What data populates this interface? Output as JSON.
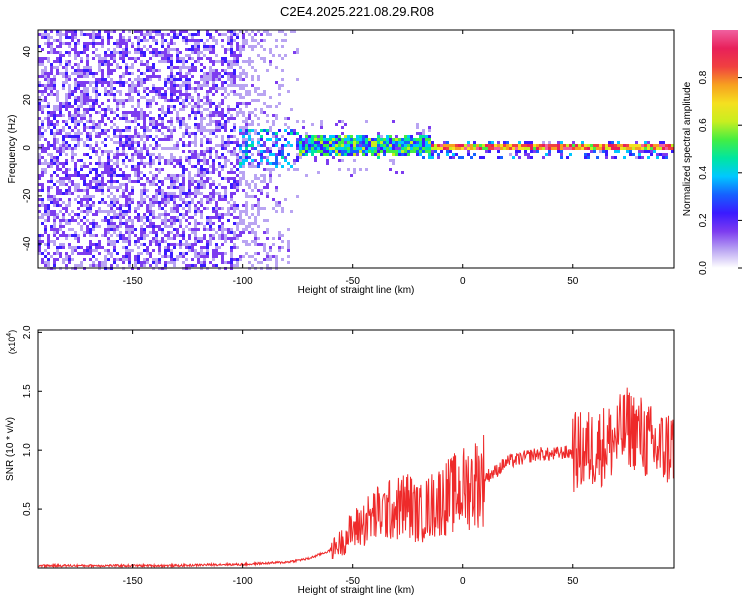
{
  "title": "C2E4.2025.221.08.29.R08",
  "colors": {
    "snr_line": "#ee2a2a",
    "axis": "#000000",
    "background": "#ffffff",
    "colormap": [
      "#ffffff",
      "#b9a4f2",
      "#7d3cf0",
      "#3a1aff",
      "#1660ff",
      "#00c8ff",
      "#00e6a0",
      "#43ee43",
      "#c8ee20",
      "#f5e020",
      "#f7a020",
      "#f04040",
      "#e8205a",
      "#f060a0"
    ]
  },
  "chart_data": [
    {
      "type": "heatmap",
      "xlabel": "Height of straight line (km)",
      "ylabel": "Frequency (Hz)",
      "xlim": [
        -193,
        96
      ],
      "ylim": [
        -50,
        49
      ],
      "xticks": [
        -150,
        -100,
        -50,
        0,
        50
      ],
      "yticks": [
        -40,
        -20,
        0,
        20,
        40
      ],
      "colorbar": {
        "label": "Normalized spectral amplitude",
        "range": [
          0.0,
          1.0
        ],
        "ticks": [
          "0.0",
          "0.2",
          "0.4",
          "0.6",
          "0.8"
        ]
      }
    },
    {
      "type": "line",
      "xlabel": "Height of straight line (km)",
      "ylabel": "SNR (10 * v/v)",
      "yscale_label": "(x10",
      "yscale_exp": "4",
      "yscale_close": ")",
      "xlim": [
        -193,
        96
      ],
      "ylim": [
        0,
        2.02
      ],
      "xticks": [
        -150,
        -100,
        -50,
        0,
        50
      ],
      "yticks": [
        "0.5",
        "1.0",
        "1.5",
        "2.0"
      ],
      "series": [
        {
          "x": [
            -193,
            -160,
            -130,
            -110,
            -100,
            -90,
            -80,
            -70,
            -60,
            -55,
            -50,
            -45,
            -40,
            -35,
            -30,
            -25,
            -20,
            -15,
            -10,
            -5,
            0,
            5,
            10,
            15,
            20,
            25,
            30,
            35,
            40,
            45,
            50,
            55,
            60,
            65,
            70,
            75,
            80,
            85,
            90,
            96
          ],
          "y": [
            0.02,
            0.02,
            0.02,
            0.03,
            0.03,
            0.04,
            0.05,
            0.08,
            0.15,
            0.22,
            0.32,
            0.38,
            0.45,
            0.48,
            0.5,
            0.55,
            0.45,
            0.52,
            0.58,
            0.62,
            0.67,
            0.72,
            0.77,
            0.82,
            0.9,
            0.92,
            0.95,
            0.97,
            0.96,
            0.98,
            0.98,
            0.99,
            1.02,
            1.05,
            1.1,
            1.2,
            1.15,
            1.05,
            1.0,
            1.05
          ]
        }
      ]
    }
  ]
}
